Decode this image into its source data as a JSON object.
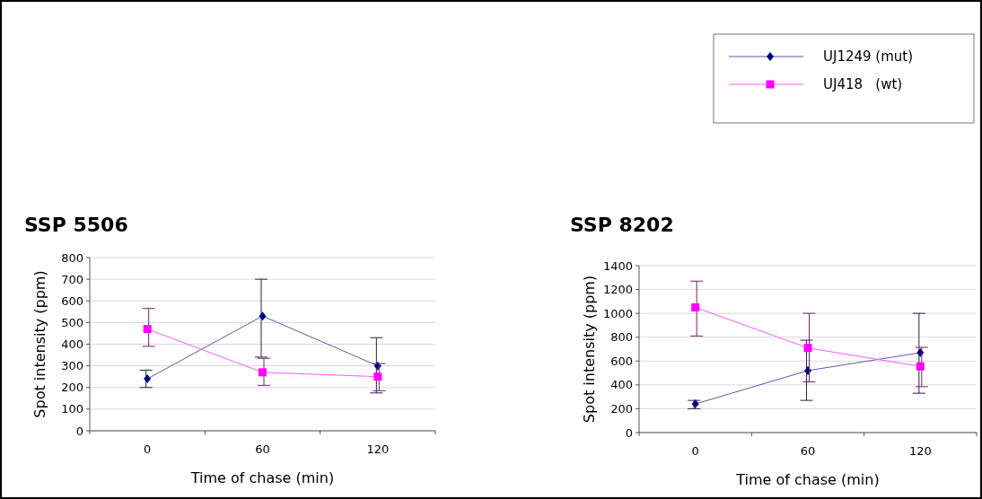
{
  "chart_data": [
    {
      "type": "line",
      "title": "SSP 5506",
      "xlabel": "Time of chase (min)",
      "ylabel": "Spot intensity (ppm)",
      "categories": [
        "0",
        "60",
        "120"
      ],
      "ylim": [
        0,
        800
      ],
      "yticks": [
        0,
        100,
        200,
        300,
        400,
        500,
        600,
        700,
        800
      ],
      "grid": "y",
      "legend": "top right",
      "series": [
        {
          "name": "UJ1249 (mut)",
          "color": "#000080",
          "marker": "diamond",
          "values": [
            240,
            530,
            300
          ],
          "errors": [
            [
              200,
              280
            ],
            [
              340,
              700
            ],
            [
              175,
              430
            ]
          ]
        },
        {
          "name": "UJ418   (wt)",
          "color": "#ff00ff",
          "marker": "square",
          "values": [
            470,
            270,
            250
          ],
          "errors": [
            [
              390,
              565
            ],
            [
              210,
              335
            ],
            [
              185,
              310
            ]
          ]
        }
      ]
    },
    {
      "type": "line",
      "title": "SSP 8202",
      "xlabel": "Time of chase (min)",
      "ylabel": "Spot intensity (ppm)",
      "categories": [
        "0",
        "60",
        "120"
      ],
      "ylim": [
        0,
        1400
      ],
      "yticks": [
        0,
        200,
        400,
        600,
        800,
        1000,
        1200,
        1400
      ],
      "grid": "y",
      "series": [
        {
          "color": "#000080",
          "marker": "diamond",
          "values": [
            240,
            520,
            670
          ],
          "errors": [
            [
              200,
              270
            ],
            [
              270,
              775
            ],
            [
              330,
              1000
            ]
          ]
        },
        {
          "color": "#ff00ff",
          "marker": "square",
          "values": [
            1050,
            710,
            555
          ],
          "errors": [
            [
              810,
              1270
            ],
            [
              425,
              1000
            ],
            [
              385,
              715
            ]
          ]
        }
      ]
    }
  ]
}
